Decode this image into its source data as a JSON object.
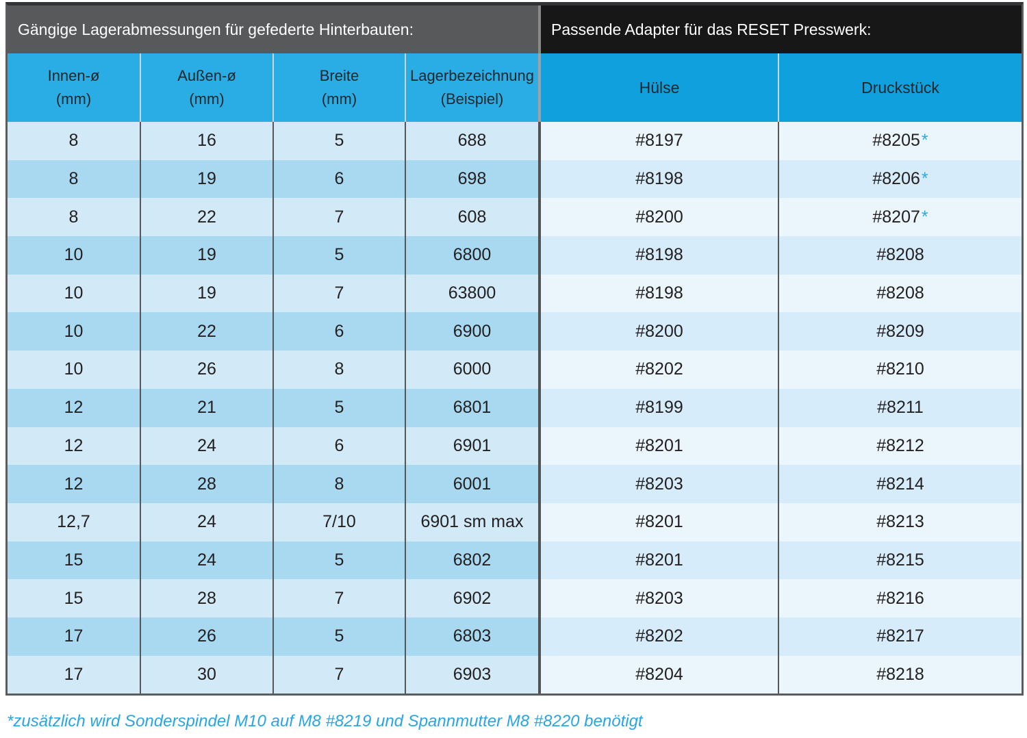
{
  "colors": {
    "accent_cyan": "#29abe2",
    "left_bar_bg": "#58595b",
    "right_bar_bg": "#171717",
    "left_col_header_bg": "#29ade4",
    "right_col_header_bg": "#0fa0dd",
    "left_row_light": "#d2eaf7",
    "left_row_dark": "#a8d9f1",
    "right_row_light": "#ebf5fc",
    "right_row_dark": "#d7ecfa",
    "cell_text": "#232021"
  },
  "chart_data": {
    "type": "table",
    "left_section": {
      "title": "Gängige Lagerabmessungen für gefederte Hinterbauten:",
      "columns": [
        {
          "label": "Innen-ø",
          "unit": "(mm)"
        },
        {
          "label": "Außen-ø",
          "unit": "(mm)"
        },
        {
          "label": "Breite",
          "unit": "(mm)"
        },
        {
          "label": "Lagerbezeichnung",
          "unit": "(Beispiel)"
        }
      ]
    },
    "right_section": {
      "title": "Passende Adapter für das RESET Presswerk:",
      "columns": [
        {
          "label": "Hülse"
        },
        {
          "label": "Druckstück"
        }
      ]
    },
    "rows": [
      {
        "cells": [
          "8",
          "16",
          "5",
          "688",
          "#8197",
          "#8205"
        ],
        "star": true
      },
      {
        "cells": [
          "8",
          "19",
          "6",
          "698",
          "#8198",
          "#8206"
        ],
        "star": true
      },
      {
        "cells": [
          "8",
          "22",
          "7",
          "608",
          "#8200",
          "#8207"
        ],
        "star": true
      },
      {
        "cells": [
          "10",
          "19",
          "5",
          "6800",
          "#8198",
          "#8208"
        ],
        "star": false
      },
      {
        "cells": [
          "10",
          "19",
          "7",
          "63800",
          "#8198",
          "#8208"
        ],
        "star": false
      },
      {
        "cells": [
          "10",
          "22",
          "6",
          "6900",
          "#8200",
          "#8209"
        ],
        "star": false
      },
      {
        "cells": [
          "10",
          "26",
          "8",
          "6000",
          "#8202",
          "#8210"
        ],
        "star": false
      },
      {
        "cells": [
          "12",
          "21",
          "5",
          "6801",
          "#8199",
          "#8211"
        ],
        "star": false
      },
      {
        "cells": [
          "12",
          "24",
          "6",
          "6901",
          "#8201",
          "#8212"
        ],
        "star": false
      },
      {
        "cells": [
          "12",
          "28",
          "8",
          "6001",
          "#8203",
          "#8214"
        ],
        "star": false
      },
      {
        "cells": [
          "12,7",
          "24",
          "7/10",
          "6901 sm max",
          "#8201",
          "#8213"
        ],
        "star": false
      },
      {
        "cells": [
          "15",
          "24",
          "5",
          "6802",
          "#8201",
          "#8215"
        ],
        "star": false
      },
      {
        "cells": [
          "15",
          "28",
          "7",
          "6902",
          "#8203",
          "#8216"
        ],
        "star": false
      },
      {
        "cells": [
          "17",
          "26",
          "5",
          "6803",
          "#8202",
          "#8217"
        ],
        "star": false
      },
      {
        "cells": [
          "17",
          "30",
          "7",
          "6903",
          "#8204",
          "#8218"
        ],
        "star": false
      }
    ],
    "star_marker": "*",
    "footnote": "*zusätzlich wird Sonderspindel M10 auf M8 #8219 und Spannmutter M8 #8220 benötigt"
  }
}
